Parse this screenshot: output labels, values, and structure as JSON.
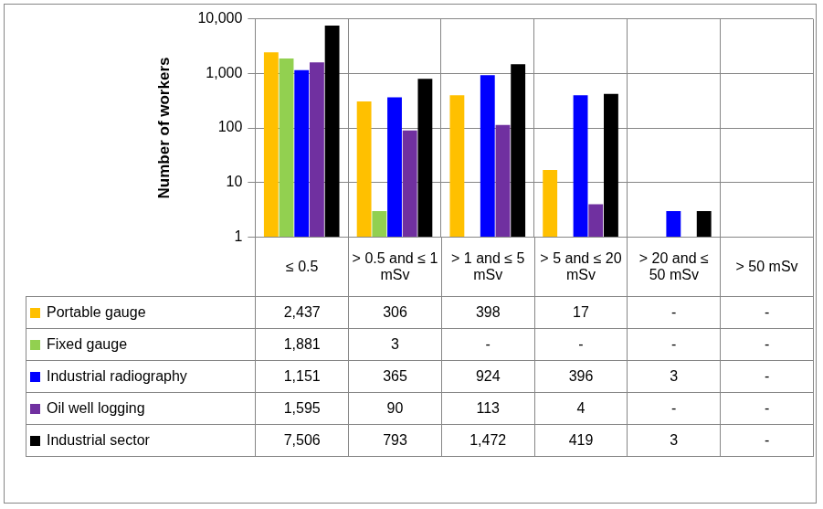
{
  "chart_data": {
    "type": "bar",
    "categories": [
      "≤ 0.5",
      "> 0.5 and ≤ 1 mSv",
      "> 1 and ≤ 5 mSv",
      "> 5 and ≤ 20 mSv",
      "> 20 and ≤ 50 mSv",
      "> 50 mSv"
    ],
    "series": [
      {
        "name": "Portable gauge",
        "color": "#ffc000",
        "values": [
          2437,
          306,
          398,
          17,
          null,
          null
        ],
        "value_labels": [
          "2,437",
          "306",
          "398",
          "17",
          "-",
          "-"
        ]
      },
      {
        "name": "Fixed gauge",
        "color": "#92d050",
        "values": [
          1881,
          3,
          null,
          null,
          null,
          null
        ],
        "value_labels": [
          "1,881",
          "3",
          "-",
          "-",
          "-",
          "-"
        ]
      },
      {
        "name": "Industrial radiography",
        "color": "#0000ff",
        "values": [
          1151,
          365,
          924,
          396,
          3,
          null
        ],
        "value_labels": [
          "1,151",
          "365",
          "924",
          "396",
          "3",
          "-"
        ]
      },
      {
        "name": "Oil well logging",
        "color": "#7030a0",
        "values": [
          1595,
          90,
          113,
          4,
          null,
          null
        ],
        "value_labels": [
          "1,595",
          "90",
          "113",
          "4",
          "-",
          "-"
        ]
      },
      {
        "name": "Industrial sector",
        "color": "#000000",
        "values": [
          7506,
          793,
          1472,
          419,
          3,
          null
        ],
        "value_labels": [
          "7,506",
          "793",
          "1,472",
          "419",
          "3",
          "-"
        ]
      }
    ],
    "ylabel": "Number of workers",
    "ylim": [
      1,
      10000
    ],
    "yticks": [
      1,
      10,
      100,
      {
        "value": 1000,
        "label": "1,000"
      },
      {
        "value": 10000,
        "label": "10,000"
      }
    ],
    "log": "y",
    "grid": true
  }
}
